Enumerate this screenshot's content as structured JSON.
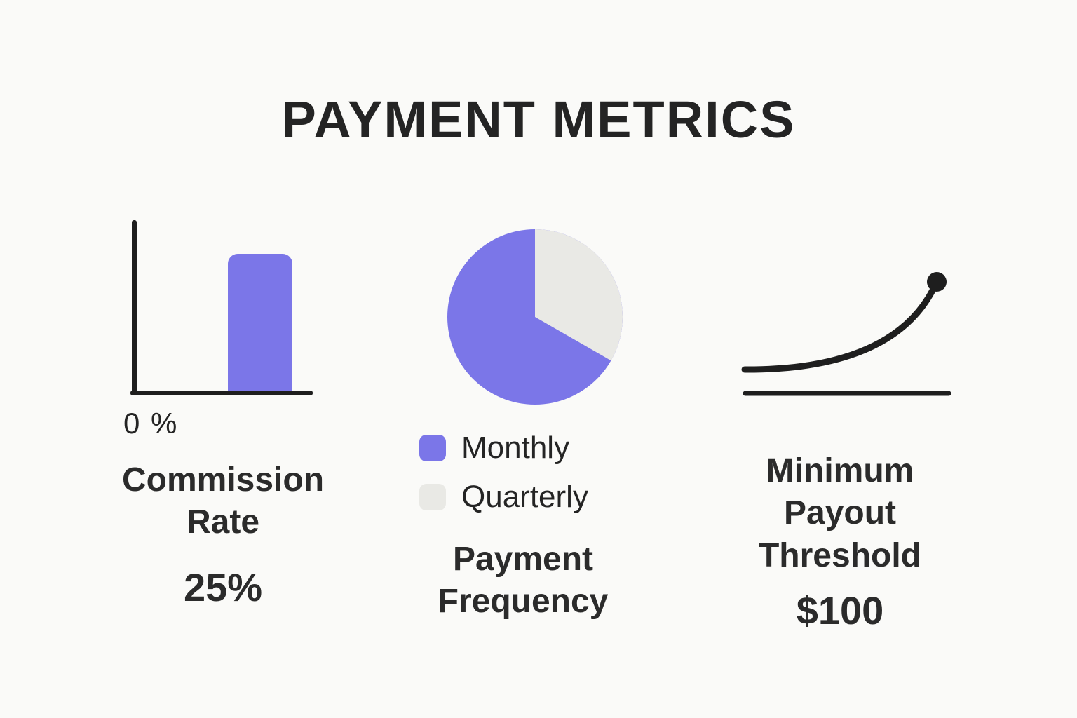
{
  "page": {
    "title": "PAYMENT METRICS",
    "background_color": "#FAFAF8",
    "ink_color": "#242424"
  },
  "colors": {
    "accent_purple": "#7B76E8",
    "neutral_gray": "#E9E9E5",
    "line_black": "#1E1E1E"
  },
  "sections": {
    "commission": {
      "label": "Commission Rate",
      "value": "25%",
      "axis_tick_label": "0 %"
    },
    "frequency": {
      "label": "Payment Frequency",
      "legend": [
        {
          "label": "Monthly",
          "color": "#7B76E8"
        },
        {
          "label": "Quarterly",
          "color": "#E9E9E5"
        }
      ]
    },
    "threshold": {
      "label": "Minimum Payout Threshold",
      "value": "$100"
    }
  },
  "chart_data": [
    {
      "type": "bar",
      "title": "Commission Rate",
      "categories": [
        "Commission Rate"
      ],
      "values": [
        25
      ],
      "value_labels": [
        "25%"
      ],
      "xlabel": "",
      "ylabel": "",
      "yticks": [
        "0 %"
      ],
      "bar_color": "#7B76E8",
      "grid": false,
      "note": "single illustrative bar on plain axes; only visible tick is 0 %"
    },
    {
      "type": "pie",
      "title": "Payment Frequency",
      "slices": [
        {
          "label": "Monthly",
          "value": 66.7,
          "color": "#7B76E8"
        },
        {
          "label": "Quarterly",
          "value": 33.3,
          "color": "#E9E9E5"
        }
      ],
      "start_angle_deg": 0,
      "direction": "clockwise",
      "legend_position": "below"
    },
    {
      "type": "line",
      "title": "Minimum Payout Threshold",
      "value_label": "$100",
      "x": [
        0,
        0.25,
        0.5,
        0.75,
        1
      ],
      "y": [
        0.1,
        0.17,
        0.3,
        0.52,
        0.82
      ],
      "line_color": "#1E1E1E",
      "grid": false,
      "note": "upward accelerating curve above a flat baseline, ending in a filled dot"
    }
  ]
}
